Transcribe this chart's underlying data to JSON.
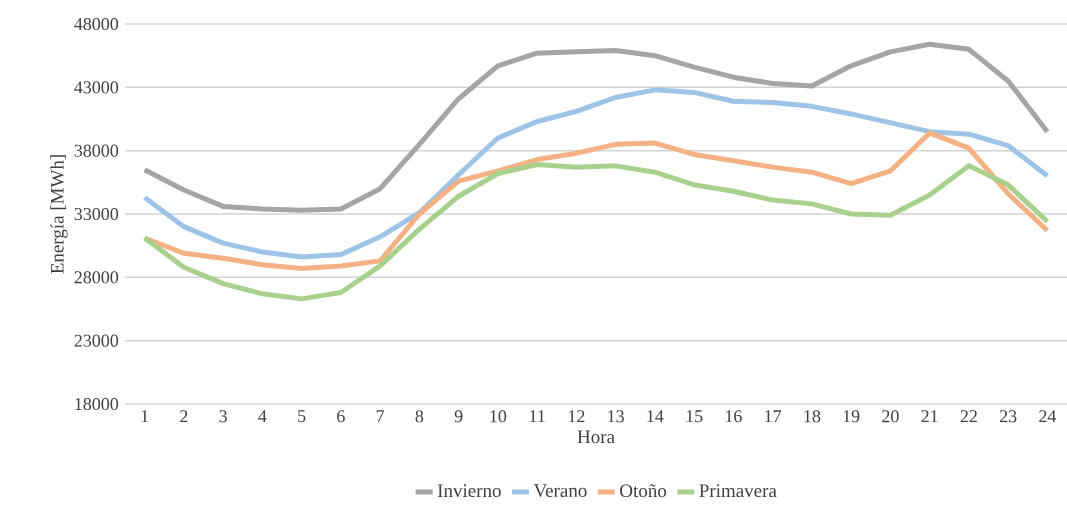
{
  "chart_data": {
    "type": "line",
    "xlabel": "Hora",
    "ylabel": "Energía [MWh]",
    "categories": [
      "1",
      "2",
      "3",
      "4",
      "5",
      "6",
      "7",
      "8",
      "9",
      "10",
      "11",
      "12",
      "13",
      "14",
      "15",
      "16",
      "17",
      "18",
      "19",
      "20",
      "21",
      "22",
      "23",
      "24"
    ],
    "series": [
      {
        "name": "Invierno",
        "color": "#a5a5a5",
        "values": [
          36500,
          34900,
          33600,
          33400,
          33300,
          33400,
          35000,
          38500,
          42100,
          44700,
          45700,
          45800,
          45900,
          45500,
          44600,
          43800,
          43300,
          43100,
          44700,
          45800,
          46400,
          46000,
          43500,
          39500
        ]
      },
      {
        "name": "Verano",
        "color": "#9dc3e6",
        "values": [
          34300,
          32000,
          30700,
          30000,
          29600,
          29800,
          31200,
          33100,
          36100,
          39000,
          40300,
          41100,
          42200,
          42800,
          42600,
          41900,
          41800,
          41500,
          40900,
          40200,
          39500,
          39300,
          38400,
          36000
        ]
      },
      {
        "name": "Otoño",
        "color": "#f4b183",
        "values": [
          31100,
          29900,
          29500,
          29000,
          28700,
          28900,
          29300,
          33000,
          35600,
          36400,
          37300,
          37800,
          38500,
          38600,
          37700,
          37200,
          36700,
          36300,
          35400,
          36400,
          39400,
          38200,
          34600,
          31700
        ]
      },
      {
        "name": "Primavera",
        "color": "#a9d18e",
        "values": [
          31100,
          28800,
          27500,
          26700,
          26300,
          26800,
          28900,
          31800,
          34400,
          36200,
          36900,
          36700,
          36800,
          36300,
          35300,
          34800,
          34100,
          33800,
          33000,
          32900,
          34500,
          36800,
          35300,
          32400
        ]
      }
    ],
    "ylim": [
      18000,
      48000
    ],
    "yticks": [
      18000,
      23000,
      28000,
      33000,
      38000,
      43000,
      48000
    ],
    "grid": "y",
    "legend": "bottom",
    "marker": "none",
    "line_style": "solid"
  }
}
